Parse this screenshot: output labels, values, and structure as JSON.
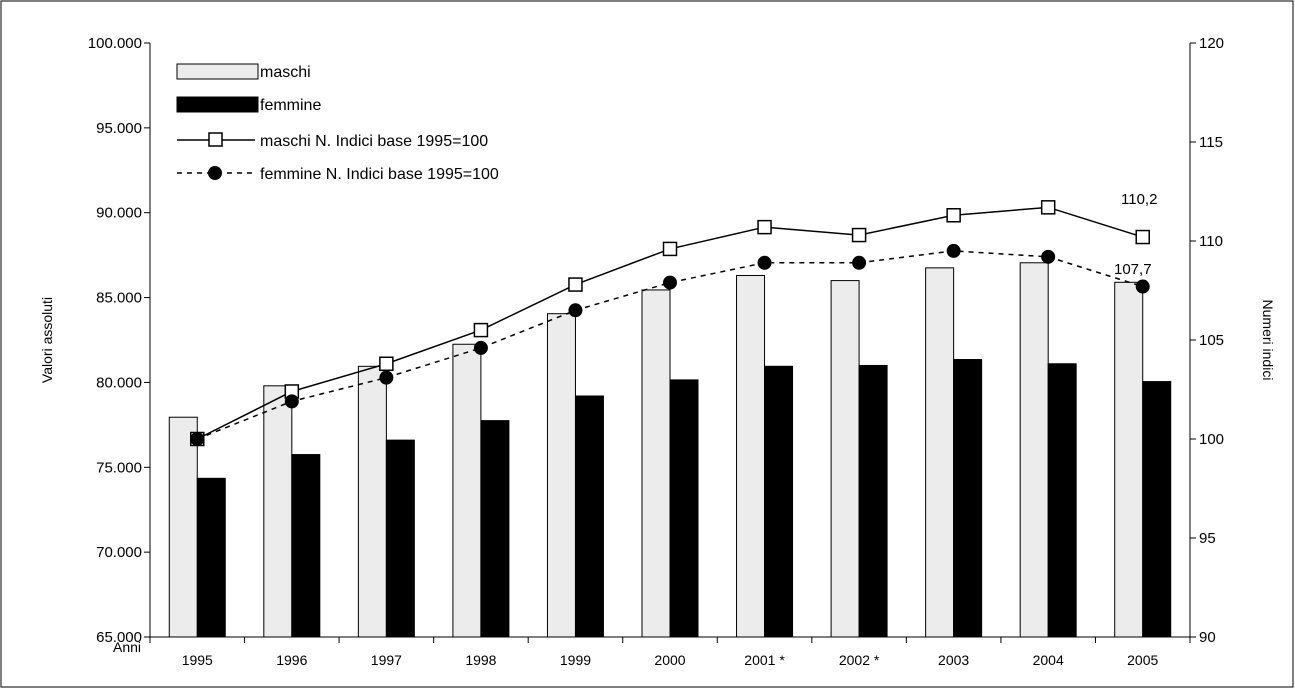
{
  "chart_data": {
    "type": "bar",
    "categories": [
      "1995",
      "1996",
      "1997",
      "1998",
      "1999",
      "2000",
      "2001 *",
      "2002 *",
      "2003",
      "2004",
      "2005"
    ],
    "series": [
      {
        "name": "maschi",
        "type": "bar",
        "axis": "left",
        "color": "#ececec",
        "values": [
          77950,
          79800,
          80950,
          82250,
          84050,
          85450,
          86300,
          86000,
          86750,
          87050,
          85900
        ]
      },
      {
        "name": "femmine",
        "type": "bar",
        "axis": "left",
        "color": "#000000",
        "values": [
          74350,
          75750,
          76600,
          77750,
          79200,
          80150,
          80950,
          81000,
          81350,
          81100,
          80050
        ]
      },
      {
        "name": "maschi N. Indici base 1995=100",
        "type": "line",
        "axis": "right",
        "marker": "square-open",
        "style": "solid",
        "values": [
          100.0,
          102.4,
          103.8,
          105.5,
          107.8,
          109.6,
          110.7,
          110.3,
          111.3,
          111.7,
          110.2
        ]
      },
      {
        "name": "femmine N. Indici base 1995=100",
        "type": "line",
        "axis": "right",
        "marker": "circle-filled",
        "style": "dashed",
        "values": [
          100.0,
          101.9,
          103.1,
          104.6,
          106.5,
          107.9,
          108.9,
          108.9,
          109.5,
          109.2,
          107.7
        ]
      }
    ],
    "ylabel": "Valori assoluti",
    "y2label": "Numeri indici",
    "xlabel": "Anni",
    "ylim": [
      65000,
      100000
    ],
    "y2lim": [
      90,
      120
    ],
    "y_ticks": [
      "65.000",
      "70.000",
      "75.000",
      "80.000",
      "85.000",
      "90.000",
      "95.000",
      "100.000"
    ],
    "y2_ticks": [
      "90",
      "95",
      "100",
      "105",
      "110",
      "115",
      "120"
    ],
    "annotations": [
      "110,2",
      "107,7"
    ],
    "legend_position": "top-left",
    "grid": false
  }
}
